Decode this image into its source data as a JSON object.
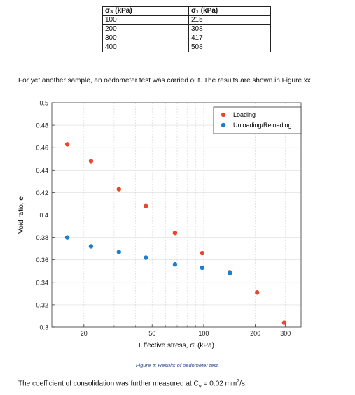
{
  "table": {
    "headers": [
      "σ₃ (kPa)",
      "σ₁ (kPa)"
    ],
    "rows": [
      [
        "100",
        "215"
      ],
      [
        "200",
        "308"
      ],
      [
        "300",
        "417"
      ],
      [
        "400",
        "508"
      ]
    ]
  },
  "intro_text": "For yet another sample, an oedometer test was carried out. The results are shown in Figure xx.",
  "chart_data": {
    "type": "scatter",
    "xscale": "log",
    "xlim": [
      13,
      370
    ],
    "ylim": [
      0.3,
      0.5
    ],
    "xticks": [
      20,
      50,
      100,
      200,
      300
    ],
    "xtick_labels": [
      "20",
      "50",
      "100",
      "200",
      "300"
    ],
    "yticks": [
      0.3,
      0.32,
      0.34,
      0.36,
      0.38,
      0.4,
      0.42,
      0.44,
      0.46,
      0.48,
      0.5
    ],
    "ytick_labels": [
      "0.3",
      "0.32",
      "0.34",
      "0.36",
      "0.38",
      "0.4",
      "0.42",
      "0.44",
      "0.46",
      "0.48",
      "0.5"
    ],
    "xlabel": "Effective stress, σ' (kPa)",
    "ylabel": "Void ratio, e",
    "grid": true,
    "legend_position": "top-right",
    "series": [
      {
        "name": "Loading",
        "color": "#e8472f",
        "x": [
          16,
          22,
          32,
          46,
          68,
          98,
          142,
          205,
          295
        ],
        "y": [
          0.463,
          0.448,
          0.423,
          0.408,
          0.384,
          0.366,
          0.349,
          0.331,
          0.304
        ]
      },
      {
        "name": "Unloading/Reloading",
        "color": "#1a7fd1",
        "x": [
          16,
          22,
          32,
          46,
          68,
          98,
          142
        ],
        "y": [
          0.38,
          0.372,
          0.367,
          0.362,
          0.356,
          0.353,
          0.348
        ]
      }
    ]
  },
  "caption": "Figure 4: Results of oedometer test.",
  "outro": {
    "before": "The coefficient of consolidation was further measured at C",
    "sub": "v",
    "middle": " = 0.02 mm",
    "sup": "2",
    "after": "/s."
  }
}
